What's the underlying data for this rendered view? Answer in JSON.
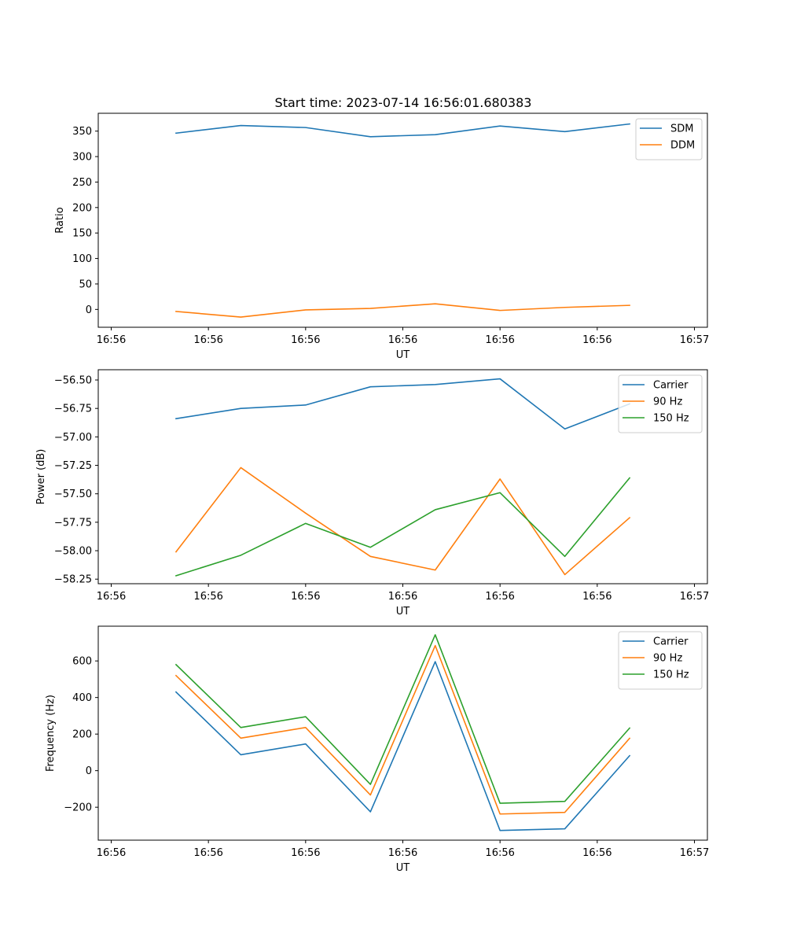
{
  "figure": {
    "title": "Start time: 2023-07-14 16:56:01.680383"
  },
  "colors": {
    "blue": "#1f77b4",
    "orange": "#ff7f0e",
    "green": "#2ca02c"
  },
  "chart_data": [
    {
      "type": "line",
      "title": "Start time: 2023-07-14 16:56:01.680383",
      "xlabel": "UT",
      "ylabel": "Ratio",
      "x": [
        0.5,
        1.0,
        1.5,
        2.0,
        2.5,
        3.0,
        3.5,
        4.0
      ],
      "xlim": [
        -0.1,
        4.6
      ],
      "xticks": [
        0,
        0.75,
        1.5,
        2.25,
        3.0,
        3.75,
        4.5
      ],
      "xtick_labels": [
        "16:56",
        "16:56",
        "16:56",
        "16:56",
        "16:56",
        "16:56",
        "16:57"
      ],
      "ylim": [
        -35,
        385
      ],
      "yticks": [
        0,
        50,
        100,
        150,
        200,
        250,
        300,
        350
      ],
      "ytick_labels": [
        "0",
        "50",
        "100",
        "150",
        "200",
        "250",
        "300",
        "350"
      ],
      "legend": "top-right",
      "series": [
        {
          "name": "SDM",
          "color": "#1f77b4",
          "values": [
            346,
            361,
            357,
            339,
            343,
            360,
            349,
            364
          ]
        },
        {
          "name": "DDM",
          "color": "#ff7f0e",
          "values": [
            -4,
            -15,
            -1,
            2,
            11,
            -2,
            4,
            8
          ]
        }
      ]
    },
    {
      "type": "line",
      "title": "",
      "xlabel": "UT",
      "ylabel": "Power (dB)",
      "x": [
        0.5,
        1.0,
        1.5,
        2.0,
        2.5,
        3.0,
        3.5,
        4.0
      ],
      "xlim": [
        -0.1,
        4.6
      ],
      "xticks": [
        0,
        0.75,
        1.5,
        2.25,
        3.0,
        3.75,
        4.5
      ],
      "xtick_labels": [
        "16:56",
        "16:56",
        "16:56",
        "16:56",
        "16:56",
        "16:56",
        "16:57"
      ],
      "ylim": [
        -58.29,
        -56.41
      ],
      "yticks": [
        -58.25,
        -58.0,
        -57.75,
        -57.5,
        -57.25,
        -57.0,
        -56.75,
        -56.5
      ],
      "ytick_labels": [
        "−58.25",
        "−58.00",
        "−57.75",
        "−57.50",
        "−57.25",
        "−57.00",
        "−56.75",
        "−56.50"
      ],
      "legend": "top-right",
      "series": [
        {
          "name": "Carrier",
          "color": "#1f77b4",
          "values": [
            -56.84,
            -56.75,
            -56.72,
            -56.56,
            -56.54,
            -56.49,
            -56.93,
            -56.71
          ]
        },
        {
          "name": "90 Hz",
          "color": "#ff7f0e",
          "values": [
            -58.01,
            -57.27,
            -57.67,
            -58.05,
            -58.17,
            -57.37,
            -58.21,
            -57.71
          ]
        },
        {
          "name": "150 Hz",
          "color": "#2ca02c",
          "values": [
            -58.22,
            -58.04,
            -57.76,
            -57.97,
            -57.64,
            -57.49,
            -58.05,
            -57.36
          ]
        }
      ]
    },
    {
      "type": "line",
      "title": "",
      "xlabel": "UT",
      "ylabel": "Frequency (Hz)",
      "x": [
        0.5,
        1.0,
        1.5,
        2.0,
        2.5,
        3.0,
        3.5,
        4.0
      ],
      "xlim": [
        -0.1,
        4.6
      ],
      "xticks": [
        0,
        0.75,
        1.5,
        2.25,
        3.0,
        3.75,
        4.5
      ],
      "xtick_labels": [
        "16:56",
        "16:56",
        "16:56",
        "16:56",
        "16:56",
        "16:56",
        "16:57"
      ],
      "ylim": [
        -380,
        790
      ],
      "yticks": [
        -200,
        0,
        200,
        400,
        600
      ],
      "ytick_labels": [
        "−200",
        "0",
        "200",
        "400",
        "600"
      ],
      "legend": "top-right",
      "series": [
        {
          "name": "Carrier",
          "color": "#1f77b4",
          "values": [
            430,
            87,
            146,
            -225,
            596,
            -327,
            -318,
            82
          ]
        },
        {
          "name": "90 Hz",
          "color": "#ff7f0e",
          "values": [
            520,
            178,
            236,
            -133,
            684,
            -237,
            -228,
            177
          ]
        },
        {
          "name": "150 Hz",
          "color": "#2ca02c",
          "values": [
            580,
            236,
            295,
            -75,
            743,
            -178,
            -168,
            233
          ]
        }
      ]
    }
  ]
}
